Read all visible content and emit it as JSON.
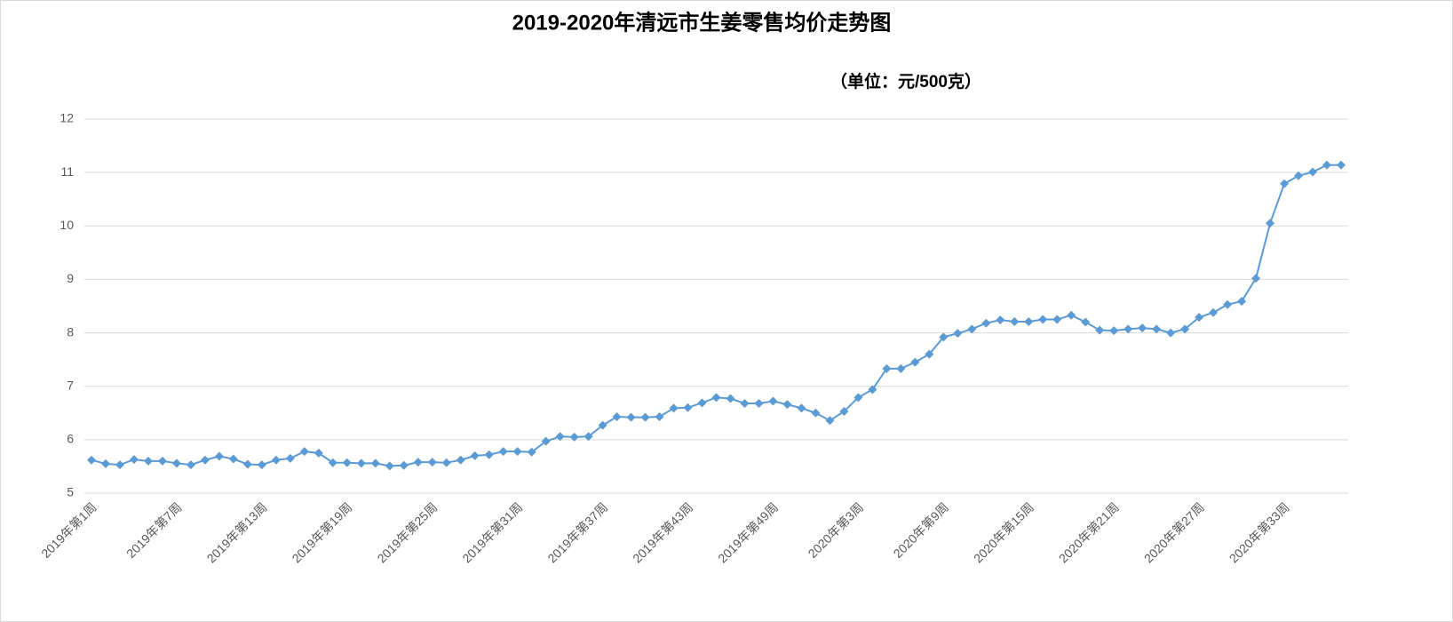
{
  "chart_data": {
    "type": "line",
    "title": "2019-2020年清远市生姜零售均价走势图",
    "subtitle": "（单位：元/500克）",
    "categories": [
      "2019年第1周",
      null,
      null,
      null,
      null,
      null,
      "2019年第7周",
      null,
      null,
      null,
      null,
      null,
      "2019年第13周",
      null,
      null,
      null,
      null,
      null,
      "2019年第19周",
      null,
      null,
      null,
      null,
      null,
      "2019年第25周",
      null,
      null,
      null,
      null,
      null,
      "2019年第31周",
      null,
      null,
      null,
      null,
      null,
      "2019年第37周",
      null,
      null,
      null,
      null,
      null,
      "2019年第43周",
      null,
      null,
      null,
      null,
      null,
      "2019年第49周",
      null,
      null,
      null,
      null,
      null,
      "2020年第3周",
      null,
      null,
      null,
      null,
      null,
      "2020年第9周",
      null,
      null,
      null,
      null,
      null,
      "2020年第15周",
      null,
      null,
      null,
      null,
      null,
      "2020年第21周",
      null,
      null,
      null,
      null,
      null,
      "2020年第27周",
      null,
      null,
      null,
      null,
      null,
      "2020年第33周",
      null,
      null,
      null,
      null
    ],
    "series": [
      {
        "color": "#5b9bd5",
        "values": [
          5.62,
          5.55,
          5.53,
          5.63,
          5.6,
          5.6,
          5.56,
          5.53,
          5.62,
          5.69,
          5.64,
          5.54,
          5.53,
          5.62,
          5.65,
          5.78,
          5.75,
          5.57,
          5.57,
          5.56,
          5.56,
          5.51,
          5.52,
          5.58,
          5.58,
          5.57,
          5.62,
          5.7,
          5.72,
          5.78,
          5.78,
          5.77,
          5.97,
          6.06,
          6.05,
          6.06,
          6.27,
          6.43,
          6.42,
          6.42,
          6.43,
          6.59,
          6.6,
          6.69,
          6.79,
          6.77,
          6.68,
          6.68,
          6.72,
          6.66,
          6.59,
          6.5,
          6.36,
          6.53,
          6.79,
          6.94,
          7.33,
          7.33,
          7.45,
          7.6,
          7.92,
          7.99,
          8.07,
          8.18,
          8.24,
          8.21,
          8.21,
          8.25,
          8.25,
          8.33,
          8.2,
          8.05,
          8.04,
          8.07,
          8.09,
          8.07,
          8.0,
          8.07,
          8.29,
          8.38,
          8.53,
          8.59,
          9.02,
          10.05,
          10.79,
          10.94,
          11.01,
          11.14,
          11.14
        ]
      }
    ],
    "ylim": [
      5,
      12
    ],
    "yticks": [
      5,
      6,
      7,
      8,
      9,
      10,
      11,
      12
    ],
    "grid": true
  }
}
